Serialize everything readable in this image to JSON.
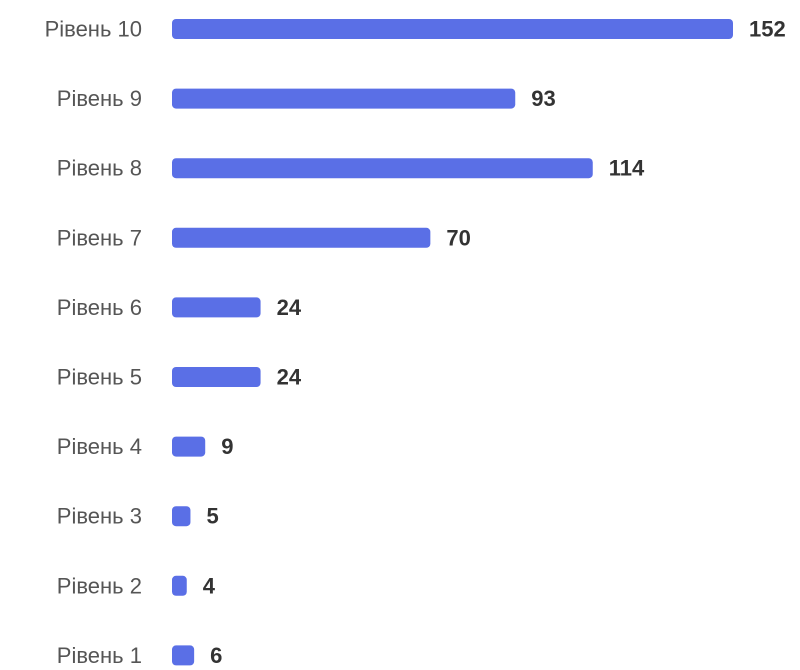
{
  "chart_data": {
    "type": "bar",
    "orientation": "horizontal",
    "categories": [
      "Рівень 10",
      "Рівень 9",
      "Рівень 8",
      "Рівень 7",
      "Рівень 6",
      "Рівень 5",
      "Рівень 4",
      "Рівень 3",
      "Рівень 2",
      "Рівень 1"
    ],
    "values": [
      152,
      93,
      114,
      70,
      24,
      24,
      9,
      5,
      4,
      6
    ],
    "title": "",
    "xlabel": "",
    "ylabel": "",
    "xlim": [
      0,
      152
    ],
    "grid": false,
    "legend": "none",
    "data_labels": true,
    "bar_color": "#5a6fe6"
  }
}
